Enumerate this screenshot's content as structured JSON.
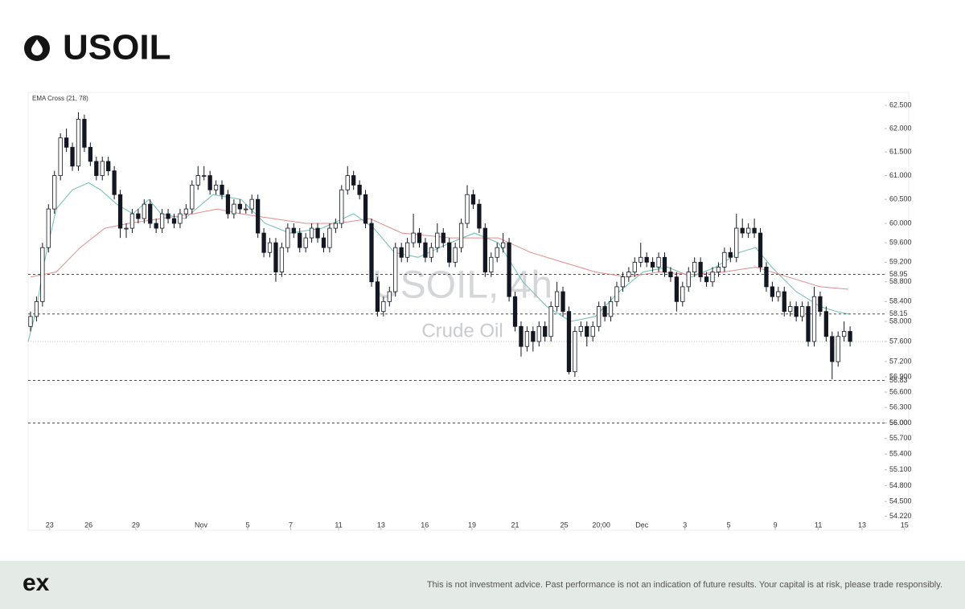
{
  "header": {
    "title": "USOIL"
  },
  "chart_data": {
    "type": "candlestick",
    "indicator_label": "EMA Cross (21, 78)",
    "watermark": {
      "symbol": "USOIL, 4h",
      "description": "Crude Oil"
    },
    "log_scale": true,
    "ylim": [
      53.96,
      62.78
    ],
    "yticks": [
      {
        "value": 62.5,
        "label": "62.500"
      },
      {
        "value": 62,
        "label": "62.000"
      },
      {
        "value": 61.5,
        "label": "61.500"
      },
      {
        "value": 61,
        "label": "61.000"
      },
      {
        "value": 60.5,
        "label": "60.500"
      },
      {
        "value": 60,
        "label": "60.000"
      },
      {
        "value": 59.6,
        "label": "59.600"
      },
      {
        "value": 59.2,
        "label": "59.200"
      },
      {
        "value": 58.8,
        "label": "58.800"
      },
      {
        "value": 58.4,
        "label": "58.400"
      },
      {
        "value": 58,
        "label": "58.000"
      },
      {
        "value": 57.6,
        "label": "57.600"
      },
      {
        "value": 57.2,
        "label": "57.200"
      },
      {
        "value": 56.9,
        "label": "56.900"
      },
      {
        "value": 56.6,
        "label": "56.600"
      },
      {
        "value": 56.3,
        "label": "56.300"
      },
      {
        "value": 56,
        "label": "56.000"
      },
      {
        "value": 55.7,
        "label": "55.700"
      },
      {
        "value": 55.4,
        "label": "55.400"
      },
      {
        "value": 55.1,
        "label": "55.100"
      },
      {
        "value": 54.8,
        "label": "54.800"
      },
      {
        "value": 54.5,
        "label": "54.500"
      },
      {
        "value": 54.22,
        "label": "54.220"
      }
    ],
    "xlim": [
      -0.4,
      146.8
    ],
    "xticks": [
      {
        "value": 3.2,
        "label": "23"
      },
      {
        "value": 9.7,
        "label": "26"
      },
      {
        "value": 17.6,
        "label": "29"
      },
      {
        "value": 28.5,
        "label": "Nov"
      },
      {
        "value": 36.3,
        "label": "5"
      },
      {
        "value": 43.5,
        "label": "7"
      },
      {
        "value": 51.5,
        "label": "11"
      },
      {
        "value": 58.6,
        "label": "13"
      },
      {
        "value": 65.9,
        "label": "16"
      },
      {
        "value": 73.8,
        "label": "19"
      },
      {
        "value": 81.0,
        "label": "21"
      },
      {
        "value": 89.2,
        "label": "25"
      },
      {
        "value": 95.4,
        "label": "20:00"
      },
      {
        "value": 102.2,
        "label": "Dec"
      },
      {
        "value": 109.4,
        "label": "3"
      },
      {
        "value": 116.7,
        "label": "5"
      },
      {
        "value": 124.5,
        "label": "9"
      },
      {
        "value": 131.7,
        "label": "11"
      },
      {
        "value": 139.0,
        "label": "13"
      },
      {
        "value": 146.1,
        "label": "15"
      }
    ],
    "up_color": "#ffffff",
    "down_color": "#131722",
    "candles": [
      [
        57.9,
        58.2,
        57.8,
        58.1
      ],
      [
        58.1,
        58.5,
        58.0,
        58.4
      ],
      [
        58.4,
        59.6,
        58.3,
        59.5
      ],
      [
        59.5,
        60.4,
        59.4,
        60.3
      ],
      [
        60.3,
        61.1,
        60.2,
        61.0
      ],
      [
        61.0,
        61.9,
        60.9,
        61.8
      ],
      [
        61.8,
        62.0,
        61.5,
        61.6
      ],
      [
        61.6,
        61.7,
        61.1,
        61.2
      ],
      [
        61.2,
        62.35,
        61.1,
        62.2
      ],
      [
        62.2,
        62.3,
        61.5,
        61.6
      ],
      [
        61.6,
        61.7,
        61.2,
        61.3
      ],
      [
        61.3,
        61.4,
        60.9,
        61.0
      ],
      [
        61.0,
        61.4,
        60.9,
        61.3
      ],
      [
        61.3,
        61.4,
        61.0,
        61.1
      ],
      [
        61.1,
        61.2,
        60.5,
        60.6
      ],
      [
        60.6,
        60.7,
        59.7,
        59.9
      ],
      [
        59.9,
        60.0,
        59.7,
        59.9
      ],
      [
        59.9,
        60.3,
        59.8,
        60.2
      ],
      [
        60.2,
        60.3,
        60.0,
        60.1
      ],
      [
        60.1,
        60.5,
        60.0,
        60.4
      ],
      [
        60.4,
        60.5,
        59.9,
        60.0
      ],
      [
        60.0,
        60.1,
        59.8,
        59.9
      ],
      [
        59.9,
        60.3,
        59.8,
        60.2
      ],
      [
        60.2,
        60.3,
        60.0,
        60.1
      ],
      [
        60.1,
        60.2,
        59.9,
        60.0
      ],
      [
        60.0,
        60.3,
        59.9,
        60.2
      ],
      [
        60.2,
        60.4,
        60.1,
        60.3
      ],
      [
        60.3,
        60.9,
        60.2,
        60.8
      ],
      [
        60.8,
        61.2,
        60.7,
        61.0
      ],
      [
        61.0,
        61.2,
        60.9,
        61.0
      ],
      [
        61.0,
        61.1,
        60.6,
        60.7
      ],
      [
        60.7,
        60.9,
        60.6,
        60.8
      ],
      [
        60.8,
        60.9,
        60.5,
        60.6
      ],
      [
        60.6,
        60.7,
        60.1,
        60.2
      ],
      [
        60.2,
        60.5,
        60.1,
        60.4
      ],
      [
        60.4,
        60.5,
        60.2,
        60.3
      ],
      [
        60.3,
        60.4,
        60.2,
        60.3
      ],
      [
        60.3,
        60.6,
        60.2,
        60.5
      ],
      [
        60.5,
        60.6,
        59.7,
        59.8
      ],
      [
        59.8,
        59.9,
        59.3,
        59.4
      ],
      [
        59.4,
        59.7,
        59.3,
        59.6
      ],
      [
        59.6,
        59.7,
        58.8,
        59.0
      ],
      [
        59.0,
        59.6,
        58.9,
        59.5
      ],
      [
        59.5,
        60.0,
        59.4,
        59.9
      ],
      [
        59.9,
        60.0,
        59.7,
        59.8
      ],
      [
        59.8,
        59.9,
        59.4,
        59.5
      ],
      [
        59.5,
        59.8,
        59.4,
        59.7
      ],
      [
        59.7,
        60.0,
        59.6,
        59.9
      ],
      [
        59.9,
        60.0,
        59.6,
        59.7
      ],
      [
        59.7,
        59.8,
        59.4,
        59.5
      ],
      [
        59.5,
        60.0,
        59.4,
        59.9
      ],
      [
        59.9,
        60.1,
        59.8,
        60.0
      ],
      [
        60.0,
        60.8,
        59.9,
        60.7
      ],
      [
        60.7,
        61.2,
        60.6,
        61.0
      ],
      [
        61.0,
        61.1,
        60.7,
        60.8
      ],
      [
        60.8,
        60.9,
        60.5,
        60.6
      ],
      [
        60.6,
        60.7,
        59.9,
        60.0
      ],
      [
        60.0,
        60.1,
        58.7,
        58.8
      ],
      [
        58.8,
        58.9,
        58.1,
        58.2
      ],
      [
        58.2,
        58.5,
        58.1,
        58.4
      ],
      [
        58.4,
        58.7,
        58.3,
        58.6
      ],
      [
        58.6,
        59.6,
        58.5,
        59.5
      ],
      [
        59.5,
        59.6,
        59.2,
        59.3
      ],
      [
        59.3,
        59.7,
        59.2,
        59.6
      ],
      [
        59.6,
        60.2,
        59.5,
        59.8
      ],
      [
        59.8,
        59.9,
        59.5,
        59.6
      ],
      [
        59.6,
        59.7,
        59.2,
        59.3
      ],
      [
        59.3,
        59.6,
        59.2,
        59.5
      ],
      [
        59.5,
        60.0,
        59.4,
        59.8
      ],
      [
        59.8,
        59.9,
        59.5,
        59.6
      ],
      [
        59.6,
        59.7,
        59.1,
        59.2
      ],
      [
        59.2,
        59.6,
        59.1,
        59.5
      ],
      [
        59.5,
        60.1,
        59.4,
        60.0
      ],
      [
        60.0,
        60.8,
        59.9,
        60.6
      ],
      [
        60.6,
        60.7,
        60.3,
        60.4
      ],
      [
        60.4,
        60.5,
        59.8,
        59.9
      ],
      [
        59.9,
        60.0,
        58.9,
        59.0
      ],
      [
        59.0,
        59.4,
        58.9,
        59.3
      ],
      [
        59.3,
        59.6,
        59.2,
        59.5
      ],
      [
        59.5,
        59.8,
        59.4,
        59.6
      ],
      [
        59.6,
        59.7,
        58.4,
        58.5
      ],
      [
        58.5,
        58.6,
        57.8,
        57.9
      ],
      [
        57.9,
        58.0,
        57.3,
        57.5
      ],
      [
        57.5,
        57.9,
        57.4,
        57.8
      ],
      [
        57.8,
        57.9,
        57.4,
        57.6
      ],
      [
        57.6,
        58.0,
        57.5,
        57.9
      ],
      [
        57.9,
        58.0,
        57.6,
        57.7
      ],
      [
        57.7,
        58.4,
        57.6,
        58.3
      ],
      [
        58.3,
        58.8,
        58.2,
        58.6
      ],
      [
        58.6,
        58.7,
        58.1,
        58.2
      ],
      [
        58.2,
        58.3,
        56.95,
        57.0
      ],
      [
        57.0,
        57.9,
        56.9,
        57.8
      ],
      [
        57.8,
        58.0,
        57.7,
        57.9
      ],
      [
        57.9,
        58.0,
        57.5,
        57.7
      ],
      [
        57.7,
        58.0,
        57.6,
        57.9
      ],
      [
        57.9,
        58.4,
        57.8,
        58.3
      ],
      [
        58.3,
        58.4,
        58.0,
        58.1
      ],
      [
        58.1,
        58.5,
        58.0,
        58.4
      ],
      [
        58.4,
        58.8,
        58.3,
        58.7
      ],
      [
        58.7,
        59.0,
        58.6,
        58.9
      ],
      [
        58.9,
        59.1,
        58.8,
        59.0
      ],
      [
        59.0,
        59.3,
        58.9,
        59.2
      ],
      [
        59.2,
        59.6,
        59.1,
        59.3
      ],
      [
        59.3,
        59.4,
        59.1,
        59.2
      ],
      [
        59.2,
        59.3,
        59.0,
        59.1
      ],
      [
        59.1,
        59.4,
        59.0,
        59.3
      ],
      [
        59.3,
        59.4,
        58.9,
        59.0
      ],
      [
        59.0,
        59.1,
        58.8,
        58.9
      ],
      [
        58.9,
        59.0,
        58.2,
        58.4
      ],
      [
        58.4,
        58.8,
        58.3,
        58.7
      ],
      [
        58.7,
        59.1,
        58.6,
        59.0
      ],
      [
        59.0,
        59.3,
        58.9,
        59.2
      ],
      [
        59.2,
        59.3,
        58.8,
        58.9
      ],
      [
        58.9,
        59.0,
        58.7,
        58.8
      ],
      [
        58.8,
        59.1,
        58.7,
        59.0
      ],
      [
        59.0,
        59.2,
        58.9,
        59.1
      ],
      [
        59.1,
        59.5,
        59.0,
        59.4
      ],
      [
        59.4,
        59.5,
        59.2,
        59.3
      ],
      [
        59.3,
        60.2,
        59.2,
        59.9
      ],
      [
        59.9,
        60.1,
        59.7,
        59.8
      ],
      [
        59.8,
        60.0,
        59.7,
        59.9
      ],
      [
        59.9,
        60.1,
        59.7,
        59.8
      ],
      [
        59.8,
        59.9,
        59.0,
        59.1
      ],
      [
        59.1,
        59.2,
        58.6,
        58.7
      ],
      [
        58.7,
        58.8,
        58.4,
        58.5
      ],
      [
        58.5,
        58.7,
        58.4,
        58.6
      ],
      [
        58.6,
        58.7,
        58.1,
        58.2
      ],
      [
        58.2,
        58.4,
        58.1,
        58.3
      ],
      [
        58.3,
        58.4,
        58.0,
        58.1
      ],
      [
        58.1,
        58.4,
        58.0,
        58.3
      ],
      [
        58.3,
        58.4,
        57.5,
        57.6
      ],
      [
        57.6,
        58.7,
        57.5,
        58.5
      ],
      [
        58.5,
        58.6,
        58.1,
        58.2
      ],
      [
        58.2,
        58.3,
        57.6,
        57.7
      ],
      [
        57.7,
        57.8,
        56.85,
        57.2
      ],
      [
        57.2,
        57.8,
        57.1,
        57.7
      ],
      [
        57.7,
        58.0,
        57.6,
        57.8
      ],
      [
        57.8,
        57.9,
        57.5,
        57.6
      ]
    ],
    "series": [
      {
        "color": "#6cbfae",
        "x": [
          -0.4,
          0.9,
          2.3,
          4.3,
          7.0,
          9.7,
          11.7,
          14.4,
          17.1,
          19.8,
          21.8,
          25.8,
          30.5,
          35.2,
          39.2,
          43.3,
          48.7,
          54.0,
          57.4,
          60.8,
          64.8,
          70.2,
          74.2,
          78.2,
          82.3,
          86.3,
          90.3,
          94.4,
          98.4,
          102.4,
          106.5,
          110.5,
          114.5,
          118.5,
          121.2,
          123.9,
          128.0,
          132.0,
          134.7,
          136.7
        ],
        "values": [
          57.6,
          58.2,
          59.2,
          60.3,
          60.7,
          60.85,
          60.7,
          60.4,
          60.2,
          60.5,
          60.2,
          60.1,
          60.6,
          60.5,
          60.0,
          59.8,
          59.9,
          60.2,
          59.9,
          59.4,
          59.3,
          59.6,
          59.8,
          59.6,
          58.8,
          58.3,
          58.0,
          58.1,
          58.6,
          59.0,
          59.1,
          58.9,
          59.1,
          59.4,
          59.5,
          59.1,
          58.6,
          58.3,
          58.2,
          58.15
        ]
      },
      {
        "color": "#e58a8a",
        "x": [
          0,
          4.3,
          8.3,
          12.4,
          16.4,
          21.8,
          27.2,
          31.2,
          35.2,
          40.6,
          46.0,
          51.3,
          56.7,
          62.1,
          70.2,
          78.2,
          83.6,
          89.0,
          94.4,
          99.7,
          105.1,
          110.5,
          115.9,
          121.2,
          126.6,
          132.0,
          136.7
        ],
        "values": [
          58.9,
          59.0,
          59.5,
          59.9,
          60.0,
          60.1,
          60.2,
          60.3,
          60.2,
          60.1,
          60.0,
          60.0,
          60.1,
          59.8,
          59.7,
          59.7,
          59.4,
          59.2,
          59.0,
          58.9,
          59.0,
          58.95,
          59.0,
          59.1,
          58.9,
          58.7,
          58.65
        ]
      }
    ],
    "levels": [
      58.95,
      58.15,
      56.83,
      {
        "value": 56,
        "label": "56.00"
      }
    ],
    "last_price": 57.6
  },
  "footer": {
    "logo": "ex",
    "disclaimer": "This is not investment advice. Past performance is not an indication of future results. Your capital is at risk, please trade responsibly."
  }
}
